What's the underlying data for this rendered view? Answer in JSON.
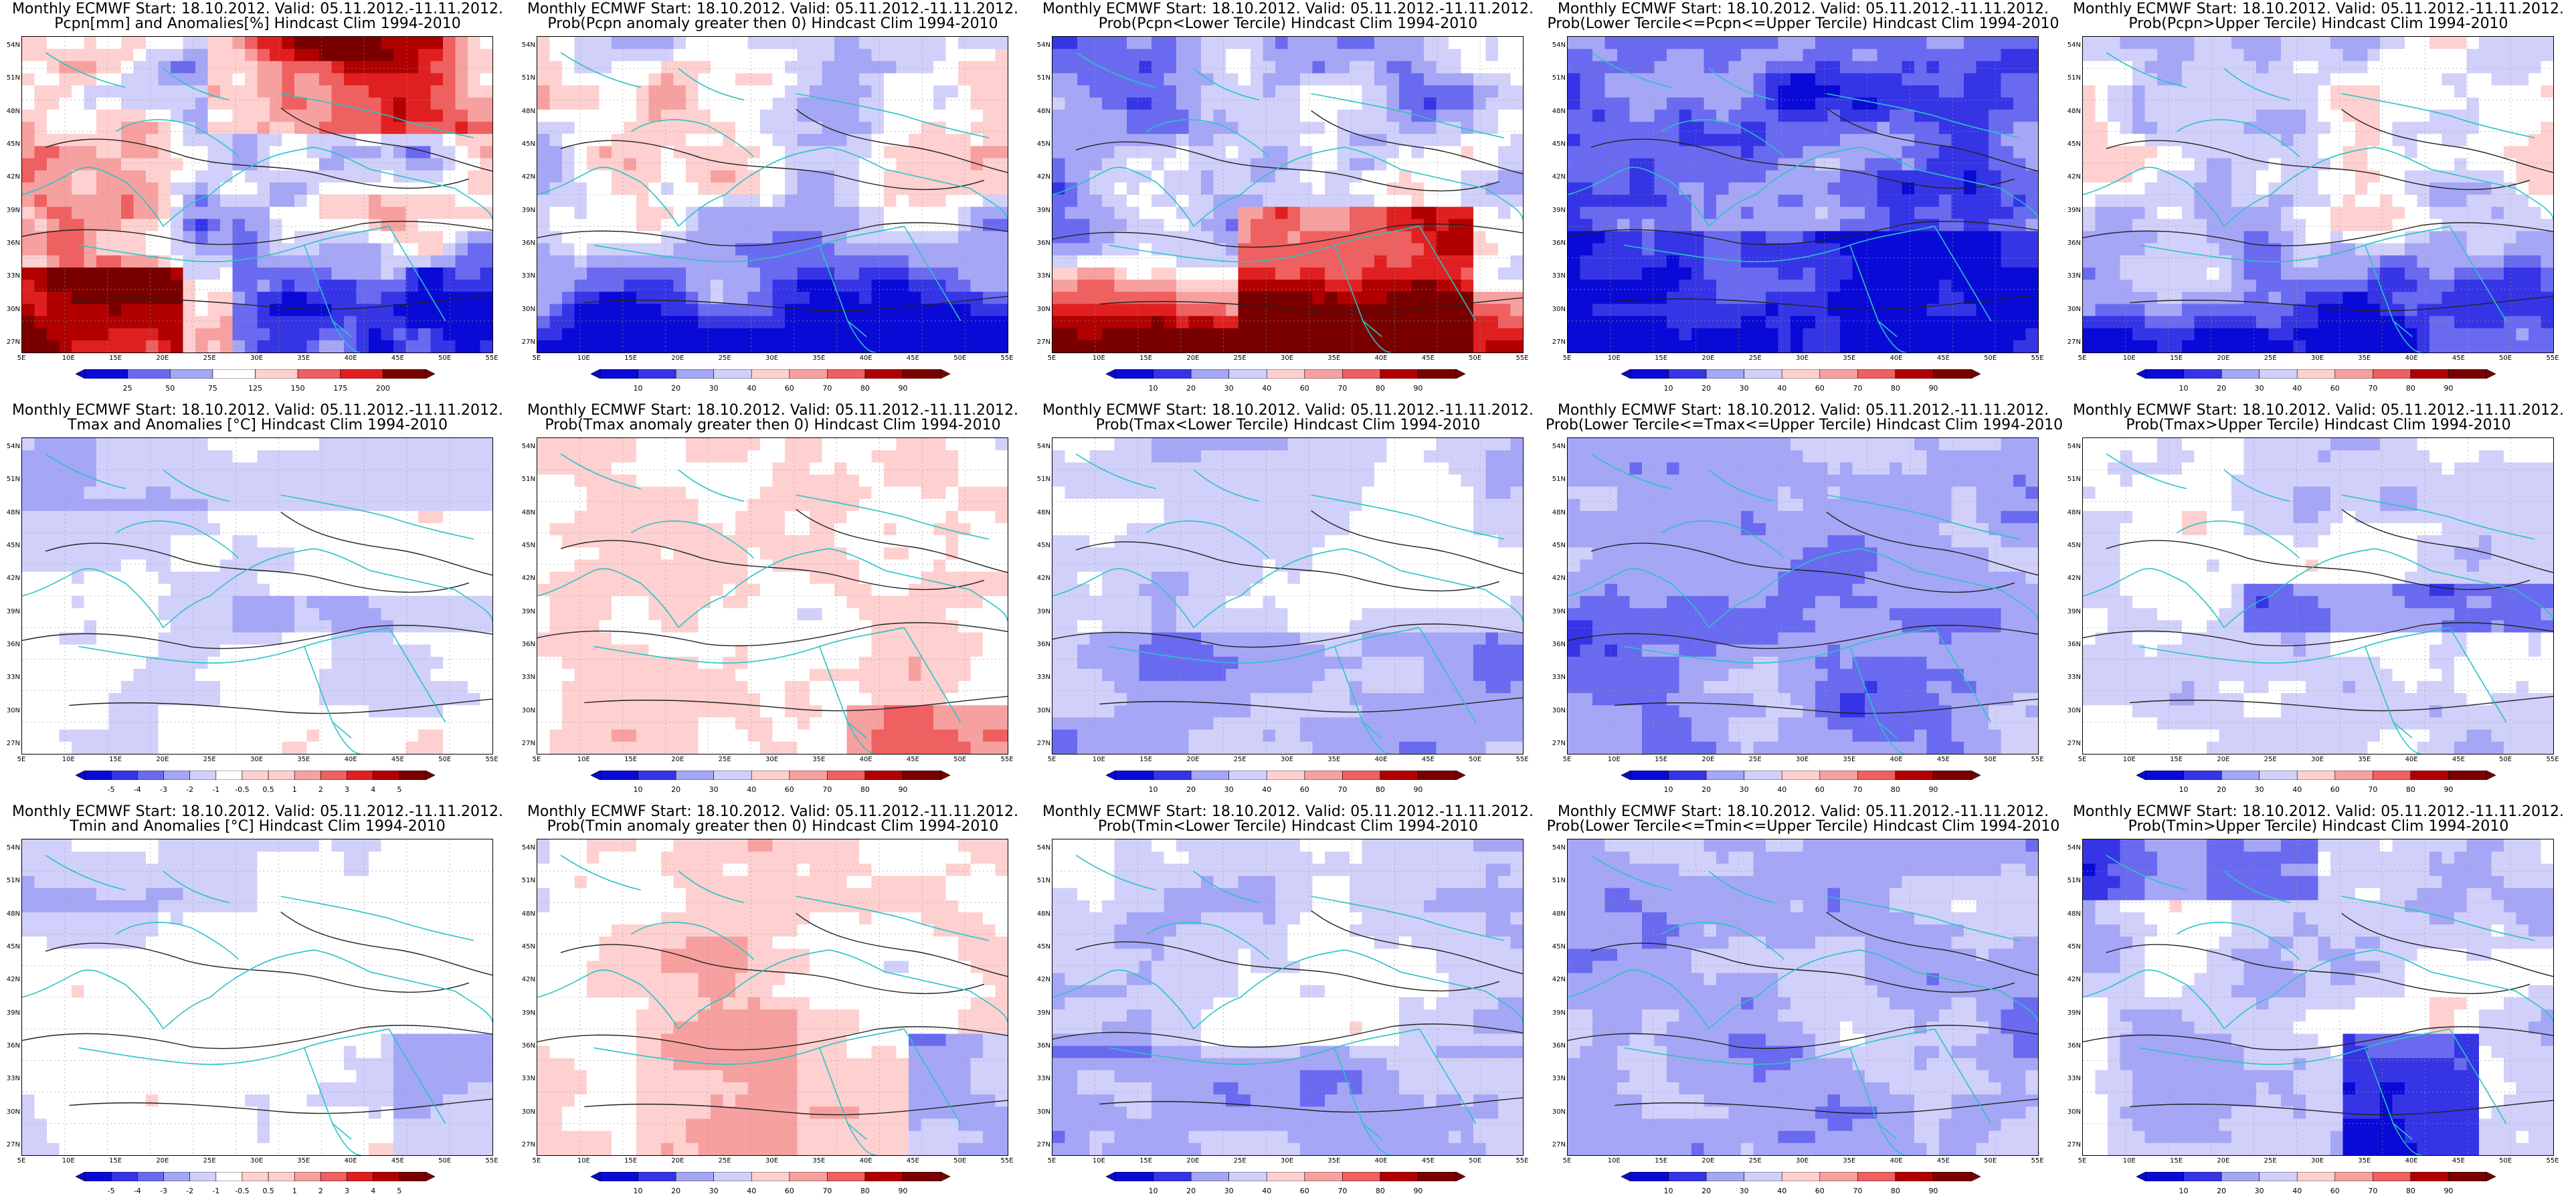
{
  "panels": [
    {
      "title1": "Monthly ECMWF Start: 18.10.2012. Valid: 05.11.2012.-11.11.2012.",
      "title2": "Pcpn[mm] and Anomalies[%] Hindcast Clim 1994-2010",
      "scale": "pct",
      "pattern": "pcpn_anom",
      "palette": "br",
      "colorbar_labels": [
        "25",
        "50",
        "75",
        "125",
        "150",
        "175",
        "200"
      ]
    },
    {
      "title1": "Monthly ECMWF Start: 18.10.2012. Valid: 05.11.2012.-11.11.2012.",
      "title2": "Prob(Pcpn anomaly greater then 0) Hindcast Clim 1994-2010",
      "scale": "prob",
      "pattern": "pcpn_gt0",
      "palette": "br",
      "colorbar_labels": [
        "10",
        "20",
        "30",
        "40",
        "60",
        "70",
        "80",
        "90"
      ]
    },
    {
      "title1": "Monthly ECMWF Start: 18.10.2012. Valid: 05.11.2012.-11.11.2012.",
      "title2": "Prob(Pcpn<Lower Tercile) Hindcast Clim 1994-2010",
      "scale": "prob",
      "pattern": "pcpn_lower",
      "palette": "br",
      "colorbar_labels": [
        "10",
        "20",
        "30",
        "40",
        "60",
        "70",
        "80",
        "90"
      ]
    },
    {
      "title1": "Monthly ECMWF Start: 18.10.2012. Valid: 05.11.2012.-11.11.2012.",
      "title2": "Prob(Lower Tercile<=Pcpn<=Upper Tercile) Hindcast Clim 1994-2010",
      "scale": "prob",
      "pattern": "pcpn_mid",
      "palette": "br",
      "colorbar_labels": [
        "10",
        "20",
        "30",
        "40",
        "60",
        "70",
        "80",
        "90"
      ]
    },
    {
      "title1": "Monthly ECMWF Start: 18.10.2012. Valid: 05.11.2012.-11.11.2012.",
      "title2": "Prob(Pcpn>Upper Tercile) Hindcast Clim 1994-2010",
      "scale": "prob",
      "pattern": "pcpn_upper",
      "palette": "br",
      "colorbar_labels": [
        "10",
        "20",
        "30",
        "40",
        "60",
        "70",
        "80",
        "90"
      ]
    },
    {
      "title1": "Monthly ECMWF Start: 18.10.2012. Valid: 05.11.2012.-11.11.2012.",
      "title2": "Tmax and Anomalies [°C] Hindcast Clim 1994-2010",
      "scale": "anom",
      "pattern": "tmax_anom",
      "palette": "br",
      "colorbar_labels": [
        "-5",
        "-4",
        "-3",
        "-2",
        "-1",
        "-0.5",
        "0.5",
        "1",
        "2",
        "3",
        "4",
        "5"
      ]
    },
    {
      "title1": "Monthly ECMWF Start: 18.10.2012. Valid: 05.11.2012.-11.11.2012.",
      "title2": "Prob(Tmax anomaly greater then 0) Hindcast Clim 1994-2010",
      "scale": "prob",
      "pattern": "tmax_gt0",
      "palette": "br",
      "colorbar_labels": [
        "10",
        "20",
        "30",
        "40",
        "60",
        "70",
        "80",
        "90"
      ]
    },
    {
      "title1": "Monthly ECMWF Start: 18.10.2012. Valid: 05.11.2012.-11.11.2012.",
      "title2": "Prob(Tmax<Lower Tercile) Hindcast Clim 1994-2010",
      "scale": "prob",
      "pattern": "tmax_lower",
      "palette": "br",
      "colorbar_labels": [
        "10",
        "20",
        "30",
        "40",
        "60",
        "70",
        "80",
        "90"
      ]
    },
    {
      "title1": "Monthly ECMWF Start: 18.10.2012. Valid: 05.11.2012.-11.11.2012.",
      "title2": "Prob(Lower Tercile<=Tmax<=Upper Tercile) Hindcast Clim 1994-2010",
      "scale": "prob",
      "pattern": "tmax_mid",
      "palette": "br",
      "colorbar_labels": [
        "10",
        "20",
        "30",
        "40",
        "60",
        "70",
        "80",
        "90"
      ]
    },
    {
      "title1": "Monthly ECMWF Start: 18.10.2012. Valid: 05.11.2012.-11.11.2012.",
      "title2": "Prob(Tmax>Upper Tercile) Hindcast Clim 1994-2010",
      "scale": "prob",
      "pattern": "tmax_upper",
      "palette": "br",
      "colorbar_labels": [
        "10",
        "20",
        "30",
        "40",
        "60",
        "70",
        "80",
        "90"
      ]
    },
    {
      "title1": "Monthly ECMWF Start: 18.10.2012. Valid: 05.11.2012.-11.11.2012.",
      "title2": "Tmin and Anomalies [°C] Hindcast Clim 1994-2010",
      "scale": "anom",
      "pattern": "tmin_anom",
      "palette": "br",
      "colorbar_labels": [
        "-5",
        "-4",
        "-3",
        "-2",
        "-1",
        "-0.5",
        "0.5",
        "1",
        "2",
        "3",
        "4",
        "5"
      ]
    },
    {
      "title1": "Monthly ECMWF Start: 18.10.2012. Valid: 05.11.2012.-11.11.2012.",
      "title2": "Prob(Tmin anomaly greater then 0) Hindcast Clim 1994-2010",
      "scale": "prob",
      "pattern": "tmin_gt0",
      "palette": "br",
      "colorbar_labels": [
        "10",
        "20",
        "30",
        "40",
        "60",
        "70",
        "80",
        "90"
      ]
    },
    {
      "title1": "Monthly ECMWF Start: 18.10.2012. Valid: 05.11.2012.-11.11.2012.",
      "title2": "Prob(Tmin<Lower Tercile) Hindcast Clim 1994-2010",
      "scale": "prob",
      "pattern": "tmin_lower",
      "palette": "br",
      "colorbar_labels": [
        "10",
        "20",
        "30",
        "40",
        "60",
        "70",
        "80",
        "90"
      ]
    },
    {
      "title1": "Monthly ECMWF Start: 18.10.2012. Valid: 05.11.2012.-11.11.2012.",
      "title2": "Prob(Lower Tercile<=Tmin<=Upper Tercile) Hindcast Clim 1994-2010",
      "scale": "prob",
      "pattern": "tmin_mid",
      "palette": "br",
      "colorbar_labels": [
        "10",
        "20",
        "30",
        "40",
        "60",
        "70",
        "80",
        "90"
      ]
    },
    {
      "title1": "Monthly ECMWF Start: 18.10.2012. Valid: 05.11.2012.-11.11.2012.",
      "title2": "Prob(Tmin>Upper Tercile) Hindcast Clim 1994-2010",
      "scale": "prob",
      "pattern": "tmin_upper",
      "palette": "br",
      "colorbar_labels": [
        "10",
        "20",
        "30",
        "40",
        "60",
        "70",
        "80",
        "90"
      ]
    }
  ],
  "map_axes": {
    "lat_labels": [
      "54N",
      "51N",
      "48N",
      "45N",
      "42N",
      "39N",
      "36N",
      "33N",
      "30N",
      "27N"
    ],
    "lon_labels": [
      "5E",
      "10E",
      "15E",
      "20E",
      "25E",
      "30E",
      "35E",
      "40E",
      "45E",
      "50E",
      "55E"
    ]
  },
  "colors": {
    "coastline": "#29c4c4",
    "contour": "#222222",
    "palette_blue_to_red": [
      "#0a0ad6",
      "#3535e6",
      "#6a6af0",
      "#a6a6f6",
      "#d0d0fa",
      "#ffffff",
      "#ffd0d0",
      "#f7a0a0",
      "#ef6060",
      "#e02020",
      "#b00000",
      "#7a0000"
    ]
  }
}
